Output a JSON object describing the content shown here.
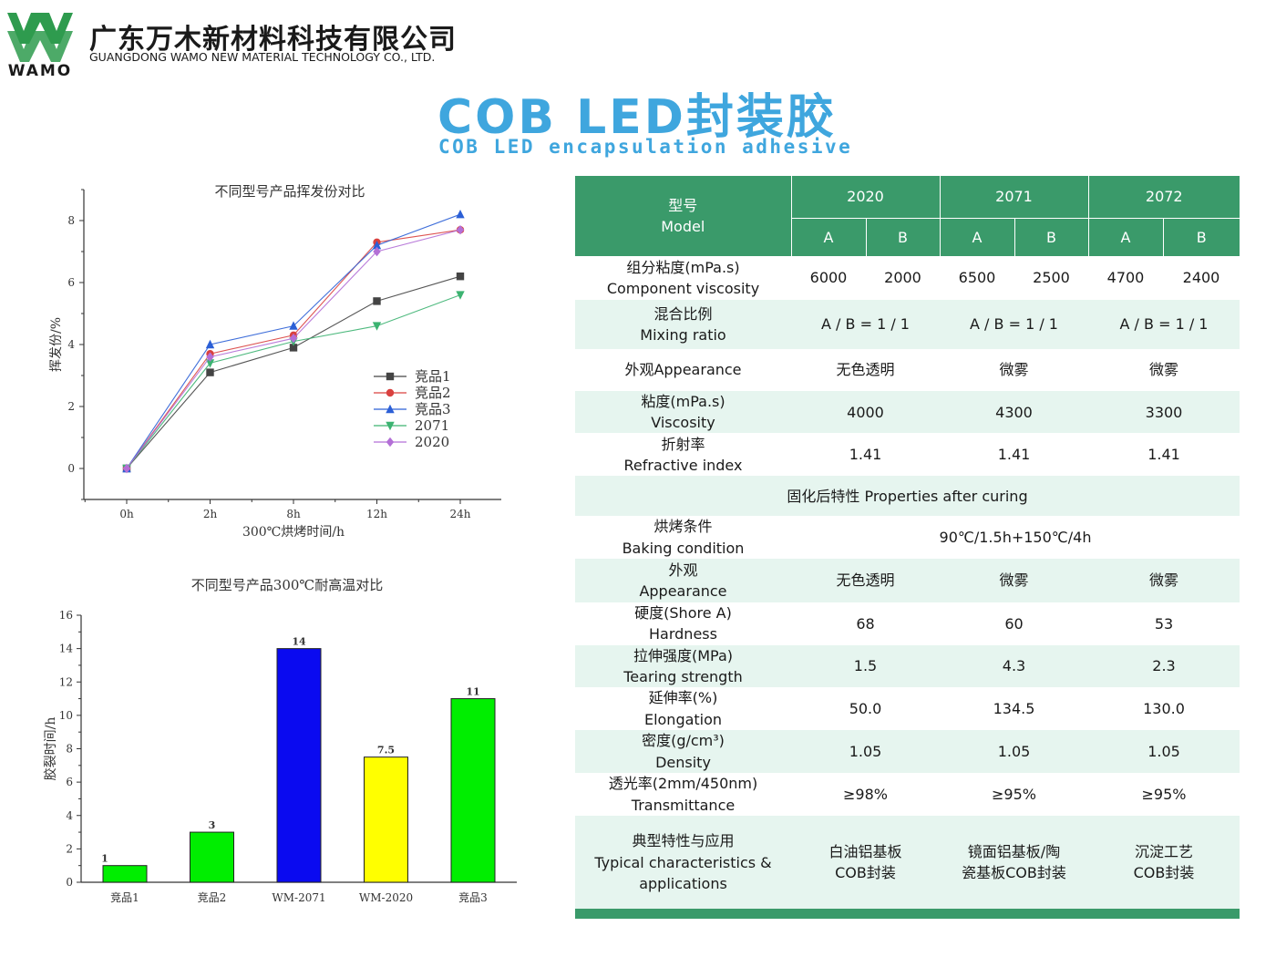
{
  "header": {
    "logo_text": "WAMO",
    "company_cn": "广东万木新材料科技有限公司",
    "company_en": "GUANGDONG WAMO NEW MATERIAL TECHNOLOGY CO., LTD.",
    "title_cn": "COB LED封装胶",
    "title_en": "COB LED encapsulation adhesive"
  },
  "colors": {
    "brand_green": "#3a9a6a",
    "light_green": "#e6f5ef",
    "title_blue": "#3fa6de",
    "logo_green": "#2e9b4e"
  },
  "chart_data": [
    {
      "type": "line",
      "title": "不同型号产品挥发份对比",
      "xlabel": "300℃烘烤时间/h",
      "ylabel": "挥发份/%",
      "categories": [
        "0h",
        "2h",
        "8h",
        "12h",
        "24h"
      ],
      "ylim": [
        -1,
        9
      ],
      "yticks": [
        0,
        2,
        4,
        6,
        8
      ],
      "legend_position": "center-right",
      "series": [
        {
          "name": "竞品1",
          "marker": "square",
          "color": "#444444",
          "values": [
            0,
            3.1,
            3.9,
            5.4,
            6.2
          ]
        },
        {
          "name": "竞品2",
          "marker": "circle",
          "color": "#d9413f",
          "values": [
            0,
            3.7,
            4.3,
            7.3,
            7.7
          ]
        },
        {
          "name": "竞品3",
          "marker": "triangle-up",
          "color": "#2b5fd6",
          "values": [
            0,
            4.0,
            4.6,
            7.2,
            8.2
          ]
        },
        {
          "name": "2071",
          "marker": "triangle-down",
          "color": "#3cb371",
          "values": [
            0,
            3.4,
            4.1,
            4.6,
            5.6
          ]
        },
        {
          "name": "2020",
          "marker": "diamond",
          "color": "#b36fd6",
          "values": [
            0,
            3.6,
            4.2,
            7.0,
            7.7
          ]
        }
      ]
    },
    {
      "type": "bar",
      "title": "不同型号产品300℃耐高温对比",
      "xlabel": "",
      "ylabel": "胶裂时间/h",
      "categories": [
        "竞品1",
        "竞品2",
        "WM-2071",
        "WM-2020",
        "竞品3"
      ],
      "values": [
        1,
        3,
        14,
        7.5,
        11
      ],
      "value_labels": [
        "1",
        "3",
        "14",
        "7.5",
        "11"
      ],
      "bar_colors": [
        "#00ee00",
        "#00ee00",
        "#0a0af0",
        "#ffff00",
        "#00ee00"
      ],
      "ylim": [
        0,
        16
      ],
      "yticks": [
        0,
        2,
        4,
        6,
        8,
        10,
        12,
        14,
        16
      ]
    }
  ],
  "table": {
    "model_cn": "型号",
    "model_en": "Model",
    "models": [
      "2020",
      "2071",
      "2072"
    ],
    "parts": [
      "A",
      "B",
      "A",
      "B",
      "A",
      "B"
    ],
    "rows": [
      {
        "cn": "组分粘度(mPa.s)",
        "en": "Component viscosity",
        "split": true,
        "values": [
          "6000",
          "2000",
          "6500",
          "2500",
          "4700",
          "2400"
        ]
      },
      {
        "cn": "混合比例",
        "en": "Mixing ratio",
        "values": [
          "A / B = 1 / 1",
          "A / B = 1 / 1",
          "A / B = 1 / 1"
        ]
      },
      {
        "cn": "外观Appearance",
        "en": "",
        "values": [
          "无色透明",
          "微雾",
          "微雾"
        ]
      },
      {
        "cn": "粘度(mPa.s)",
        "en": "Viscosity",
        "values": [
          "4000",
          "4300",
          "3300"
        ]
      },
      {
        "cn": "折射率",
        "en": "Refractive index",
        "values": [
          "1.41",
          "1.41",
          "1.41"
        ]
      }
    ],
    "section_label": "固化后特性 Properties after curing",
    "baking": {
      "cn": "烘烤条件",
      "en": "Baking condition",
      "value": "90℃/1.5h+150℃/4h"
    },
    "cured_rows": [
      {
        "cn": "外观",
        "en": "Appearance",
        "values": [
          "无色透明",
          "微雾",
          "微雾"
        ]
      },
      {
        "cn": "硬度(Shore A)",
        "en": "Hardness",
        "values": [
          "68",
          "60",
          "53"
        ]
      },
      {
        "cn": "拉伸强度(MPa)",
        "en": "Tearing strength",
        "values": [
          "1.5",
          "4.3",
          "2.3"
        ]
      },
      {
        "cn": "延伸率(%)",
        "en": "Elongation",
        "values": [
          "50.0",
          "134.5",
          "130.0"
        ]
      },
      {
        "cn": "密度(g/cm³)",
        "en": "Density",
        "values": [
          "1.05",
          "1.05",
          "1.05"
        ]
      },
      {
        "cn": "透光率(2mm/450nm)",
        "en": "Transmittance",
        "values": [
          "≥98%",
          "≥95%",
          "≥95%"
        ]
      }
    ],
    "applications": {
      "cn": "典型特性与应用",
      "en1": "Typical characteristics &",
      "en2": "applications",
      "values": [
        {
          "l1": "白油铝基板",
          "l2": "COB封装"
        },
        {
          "l1": "镜面铝基板/陶",
          "l2": "瓷基板COB封装"
        },
        {
          "l1": "沉淀工艺",
          "l2": "COB封装"
        }
      ]
    }
  }
}
